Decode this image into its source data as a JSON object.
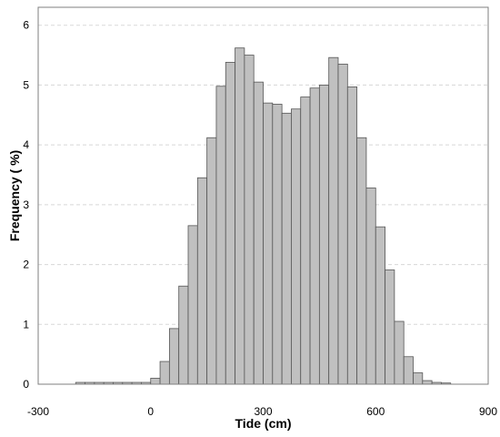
{
  "chart_data": {
    "type": "bar",
    "title": "",
    "xlabel": "Tide (cm)",
    "ylabel": "Frequency ( %)",
    "xlim": [
      -300,
      900
    ],
    "ylim": [
      0,
      6.3
    ],
    "x_ticks": [
      -300,
      0,
      300,
      600,
      900
    ],
    "y_ticks": [
      0,
      1,
      2,
      3,
      4,
      5,
      6
    ],
    "grid": "horizontal dashed",
    "bin_width": 25,
    "bins": [
      {
        "x": -200,
        "value": 0.03
      },
      {
        "x": -175,
        "value": 0.03
      },
      {
        "x": -150,
        "value": 0.03
      },
      {
        "x": -125,
        "value": 0.03
      },
      {
        "x": -100,
        "value": 0.03
      },
      {
        "x": -75,
        "value": 0.03
      },
      {
        "x": -50,
        "value": 0.03
      },
      {
        "x": -25,
        "value": 0.03
      },
      {
        "x": 0,
        "value": 0.1
      },
      {
        "x": 25,
        "value": 0.38
      },
      {
        "x": 50,
        "value": 0.93
      },
      {
        "x": 75,
        "value": 1.64
      },
      {
        "x": 100,
        "value": 2.65
      },
      {
        "x": 125,
        "value": 3.45
      },
      {
        "x": 150,
        "value": 4.12
      },
      {
        "x": 175,
        "value": 4.98
      },
      {
        "x": 200,
        "value": 5.38
      },
      {
        "x": 225,
        "value": 5.62
      },
      {
        "x": 250,
        "value": 5.5
      },
      {
        "x": 275,
        "value": 5.05
      },
      {
        "x": 300,
        "value": 4.7
      },
      {
        "x": 325,
        "value": 4.68
      },
      {
        "x": 350,
        "value": 4.53
      },
      {
        "x": 375,
        "value": 4.6
      },
      {
        "x": 400,
        "value": 4.8
      },
      {
        "x": 425,
        "value": 4.95
      },
      {
        "x": 450,
        "value": 5.0
      },
      {
        "x": 475,
        "value": 5.46
      },
      {
        "x": 500,
        "value": 5.35
      },
      {
        "x": 525,
        "value": 4.97
      },
      {
        "x": 550,
        "value": 4.12
      },
      {
        "x": 575,
        "value": 3.28
      },
      {
        "x": 600,
        "value": 2.63
      },
      {
        "x": 625,
        "value": 1.91
      },
      {
        "x": 650,
        "value": 1.05
      },
      {
        "x": 675,
        "value": 0.46
      },
      {
        "x": 700,
        "value": 0.19
      },
      {
        "x": 725,
        "value": 0.06
      },
      {
        "x": 750,
        "value": 0.03
      },
      {
        "x": 775,
        "value": 0.02
      }
    ]
  }
}
